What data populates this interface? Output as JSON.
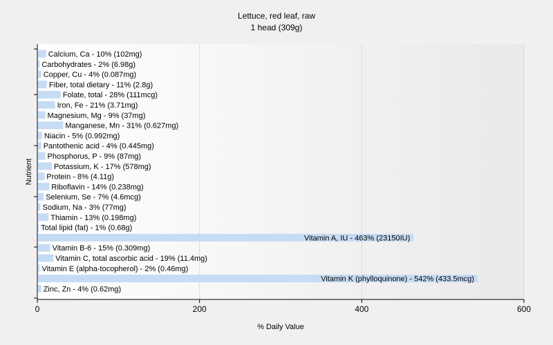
{
  "chart_data": {
    "type": "bar",
    "orientation": "horizontal",
    "title": "Lettuce, red leaf, raw",
    "subtitle": "1 head (309g)",
    "xlabel": "% Daily Value",
    "ylabel": "Nutrient",
    "xlim": [
      0,
      600
    ],
    "xticks": [
      "0",
      "200",
      "400",
      "600"
    ],
    "grid": true,
    "bar_color": "#c6dcf5",
    "categories": [
      "Calcium, Ca",
      "Carbohydrates",
      "Copper, Cu",
      "Fiber, total dietary",
      "Folate, total",
      "Iron, Fe",
      "Magnesium, Mg",
      "Manganese, Mn",
      "Niacin",
      "Pantothenic acid",
      "Phosphorus, P",
      "Potassium, K",
      "Protein",
      "Riboflavin",
      "Selenium, Se",
      "Sodium, Na",
      "Thiamin",
      "Total lipid (fat)",
      "Vitamin A, IU",
      "Vitamin B-6",
      "Vitamin C, total ascorbic acid",
      "Vitamin E (alpha-tocopherol)",
      "Vitamin K (phylloquinone)",
      "Zinc, Zn"
    ],
    "values": [
      10,
      2,
      4,
      11,
      28,
      21,
      9,
      31,
      5,
      4,
      9,
      17,
      8,
      14,
      7,
      3,
      13,
      1,
      463,
      15,
      19,
      2,
      542,
      4
    ],
    "labels": [
      "Calcium, Ca - 10% (102mg)",
      "Carbohydrates - 2% (6.98g)",
      "Copper, Cu - 4% (0.087mg)",
      "Fiber, total dietary - 11% (2.8g)",
      "Folate, total - 28% (111mcg)",
      "Iron, Fe - 21% (3.71mg)",
      "Magnesium, Mg - 9% (37mg)",
      "Manganese, Mn - 31% (0.627mg)",
      "Niacin - 5% (0.992mg)",
      "Pantothenic acid - 4% (0.445mg)",
      "Phosphorus, P - 9% (87mg)",
      "Potassium, K - 17% (578mg)",
      "Protein - 8% (4.11g)",
      "Riboflavin - 14% (0.238mg)",
      "Selenium, Se - 7% (4.6mcg)",
      "Sodium, Na - 3% (77mg)",
      "Thiamin - 13% (0.198mg)",
      "Total lipid (fat) - 1% (0.68g)",
      "Vitamin A, IU - 463% (23150IU)",
      "Vitamin B-6 - 15% (0.309mg)",
      "Vitamin C, total ascorbic acid - 19% (11.4mg)",
      "Vitamin E (alpha-tocopherol) - 2% (0.46mg)",
      "Vitamin K (phylloquinone) - 542% (433.5mcg)",
      "Zinc, Zn - 4% (0.62mg)"
    ]
  }
}
